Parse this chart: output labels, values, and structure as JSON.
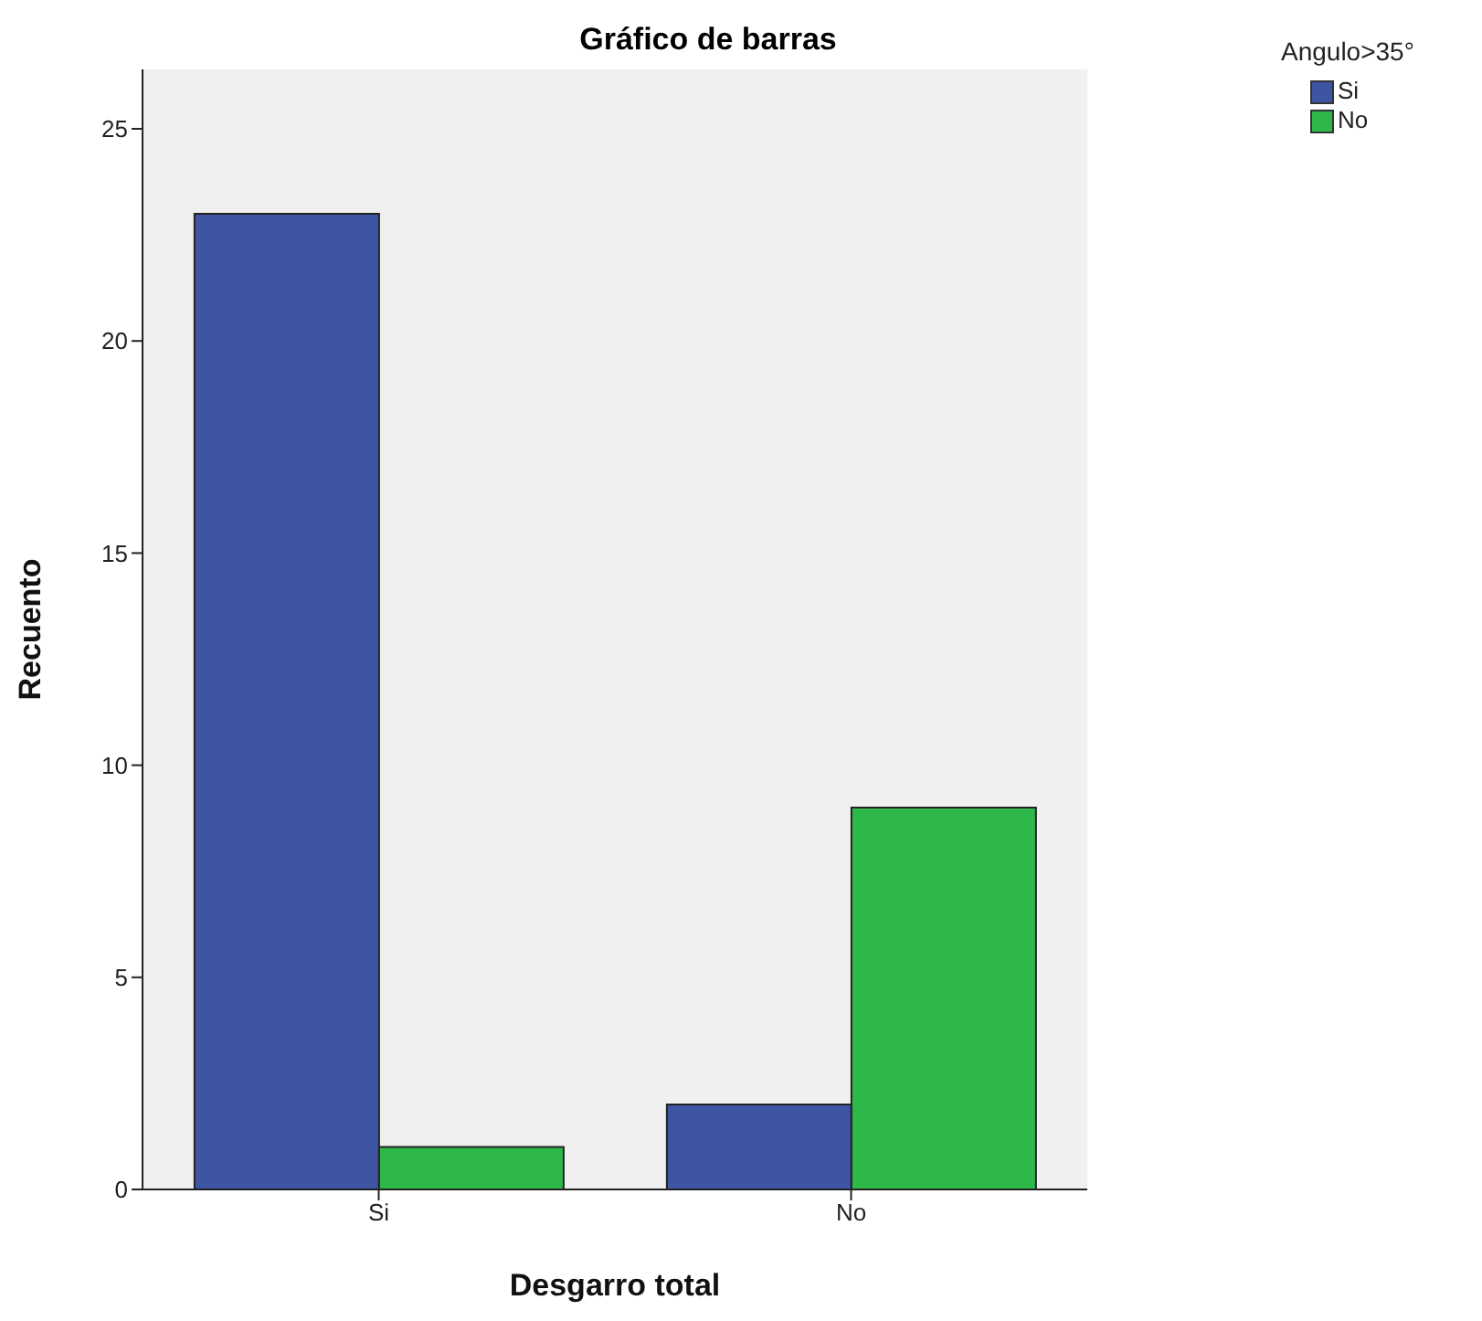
{
  "chart_data": {
    "type": "bar",
    "title": "Gráfico de barras",
    "xlabel": "Desgarro total",
    "ylabel": "Recuento",
    "legend_title": "Angulo>35°",
    "categories": [
      "Si",
      "No"
    ],
    "series": [
      {
        "name": "Si",
        "color": "#3e55a4",
        "values": [
          23,
          2
        ]
      },
      {
        "name": "No",
        "color": "#2fb84a",
        "values": [
          1,
          9
        ]
      }
    ],
    "ylim": [
      0,
      26.4
    ],
    "yticks": [
      0,
      5,
      10,
      15,
      20,
      25
    ],
    "grid": false,
    "legend": "top right"
  }
}
